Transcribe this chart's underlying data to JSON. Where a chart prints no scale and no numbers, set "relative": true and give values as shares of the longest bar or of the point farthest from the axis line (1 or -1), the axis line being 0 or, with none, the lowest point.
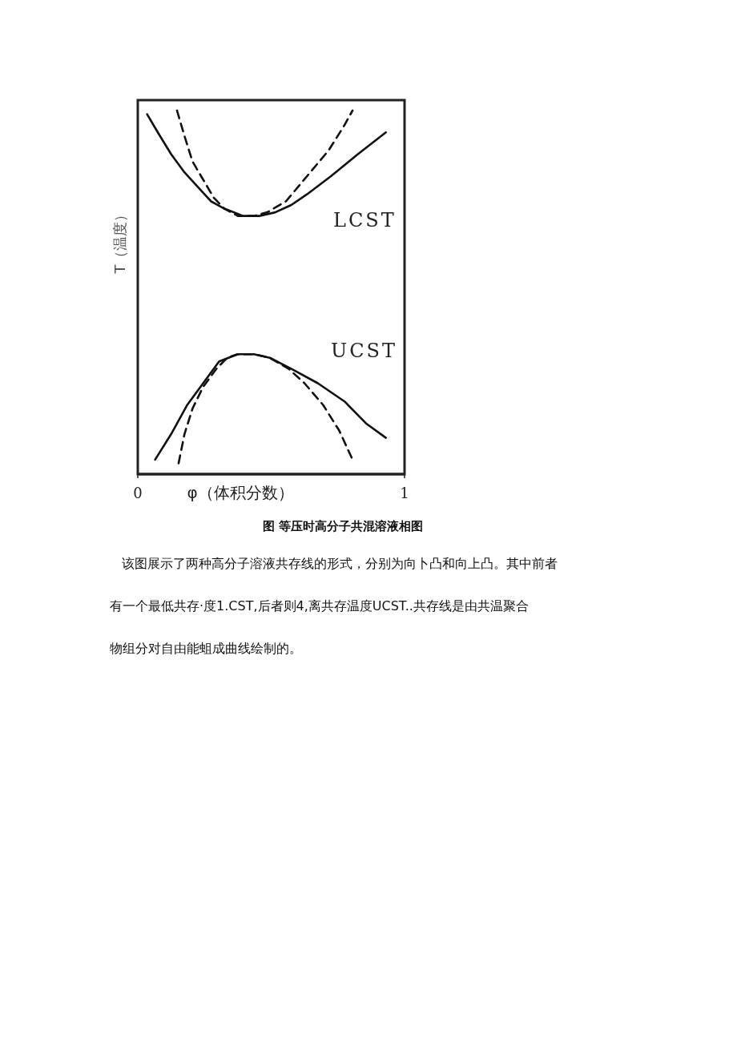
{
  "chart_data": {
    "type": "line",
    "title": "图  等压时高分子共混溶液相图",
    "xlabel": "φ（体积分数）",
    "ylabel": "T（温度）",
    "relative": true,
    "xlim": [
      0,
      1
    ],
    "xticks": [
      0,
      1
    ],
    "tick_labels": "x",
    "grid": false,
    "series": [
      {
        "color": "#111111",
        "line_style": "solid",
        "x": [
          0.035,
          0.075,
          0.125,
          0.175,
          0.225,
          0.275,
          0.325,
          0.395,
          0.455,
          0.515,
          0.575,
          0.635,
          0.725,
          0.825,
          0.93
        ],
        "values": [
          0.99,
          0.94,
          0.88,
          0.83,
          0.79,
          0.75,
          0.73,
          0.71,
          0.71,
          0.72,
          0.74,
          0.77,
          0.82,
          0.88,
          0.94
        ]
      },
      {
        "color": "#111111",
        "line_style": "dashed",
        "x": [
          0.147,
          0.175,
          0.205,
          0.245,
          0.285,
          0.325,
          0.375,
          0.435,
          0.485,
          0.555,
          0.635,
          0.715,
          0.775,
          0.805
        ],
        "values": [
          1.0,
          0.93,
          0.86,
          0.81,
          0.76,
          0.73,
          0.71,
          0.71,
          0.72,
          0.75,
          0.82,
          0.89,
          0.96,
          1.0
        ]
      },
      {
        "color": "#111111",
        "line_style": "solid",
        "x": [
          0.065,
          0.125,
          0.185,
          0.245,
          0.305,
          0.375,
          0.435,
          0.495,
          0.575,
          0.675,
          0.775,
          0.855,
          0.93
        ],
        "values": [
          0.04,
          0.11,
          0.19,
          0.25,
          0.31,
          0.33,
          0.33,
          0.32,
          0.29,
          0.25,
          0.2,
          0.14,
          0.1
        ]
      },
      {
        "color": "#111111",
        "line_style": "dashed",
        "x": [
          0.153,
          0.175,
          0.205,
          0.245,
          0.295,
          0.335,
          0.375,
          0.435,
          0.495,
          0.565,
          0.625,
          0.695,
          0.755,
          0.805
        ],
        "values": [
          0.03,
          0.11,
          0.18,
          0.24,
          0.29,
          0.32,
          0.33,
          0.33,
          0.32,
          0.29,
          0.25,
          0.19,
          0.12,
          0.04
        ]
      }
    ],
    "annotations": [
      "LCST",
      "UCST",
      "该图展示了两种高分子溶液共存线的形式，分别为向卜凸和向上凸。其中前者",
      "有一个最低共存·度1.CST,后者则4,离共存温度UCST..共存线是由共温聚合",
      "物组分对自由能蛆成曲线绘制的。"
    ]
  }
}
